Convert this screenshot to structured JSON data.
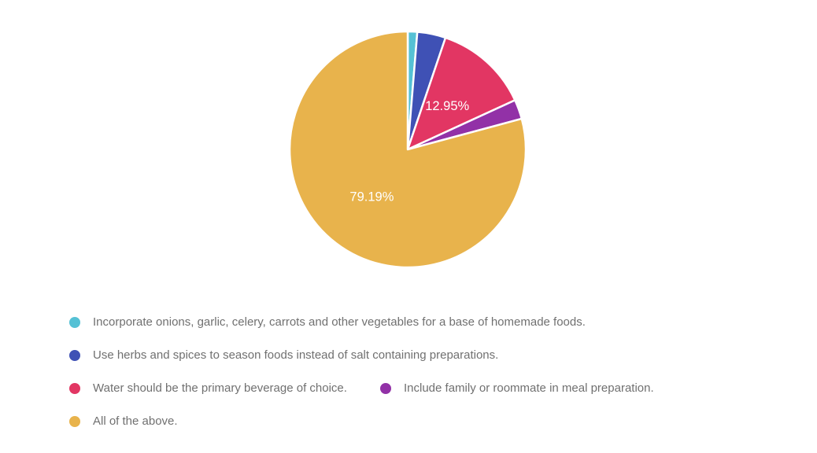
{
  "chart_data": {
    "type": "pie",
    "title": "",
    "direction": "clockwise",
    "start_angle_deg": 0,
    "grid": false,
    "legend_position": "bottom-left",
    "slice_label_color": "#ffffff",
    "slices": [
      {
        "label": "Incorporate onions, garlic, celery, carrots and other vegetables for a base of homemade foods.",
        "value_pct": 1.3,
        "data_label": "",
        "color": "#55C1D5",
        "value_estimated": true
      },
      {
        "label": "Use herbs and spices to season foods instead of salt containing preparations.",
        "value_pct": 3.89,
        "data_label": "",
        "color": "#3F51B5",
        "value_estimated": true
      },
      {
        "label": "Water should be the primary beverage of choice.",
        "value_pct": 12.95,
        "data_label": "12.95%",
        "color": "#E23663",
        "value_estimated": false
      },
      {
        "label": "Include family or roommate in meal preparation.",
        "value_pct": 2.67,
        "data_label": "",
        "color": "#9231A7",
        "value_estimated": true
      },
      {
        "label": "All of the above.",
        "value_pct": 79.19,
        "data_label": "79.19%",
        "color": "#E8B34C",
        "value_estimated": false
      }
    ],
    "legend_rows": [
      [
        0
      ],
      [
        1
      ],
      [
        2,
        3
      ],
      [
        4
      ]
    ]
  }
}
